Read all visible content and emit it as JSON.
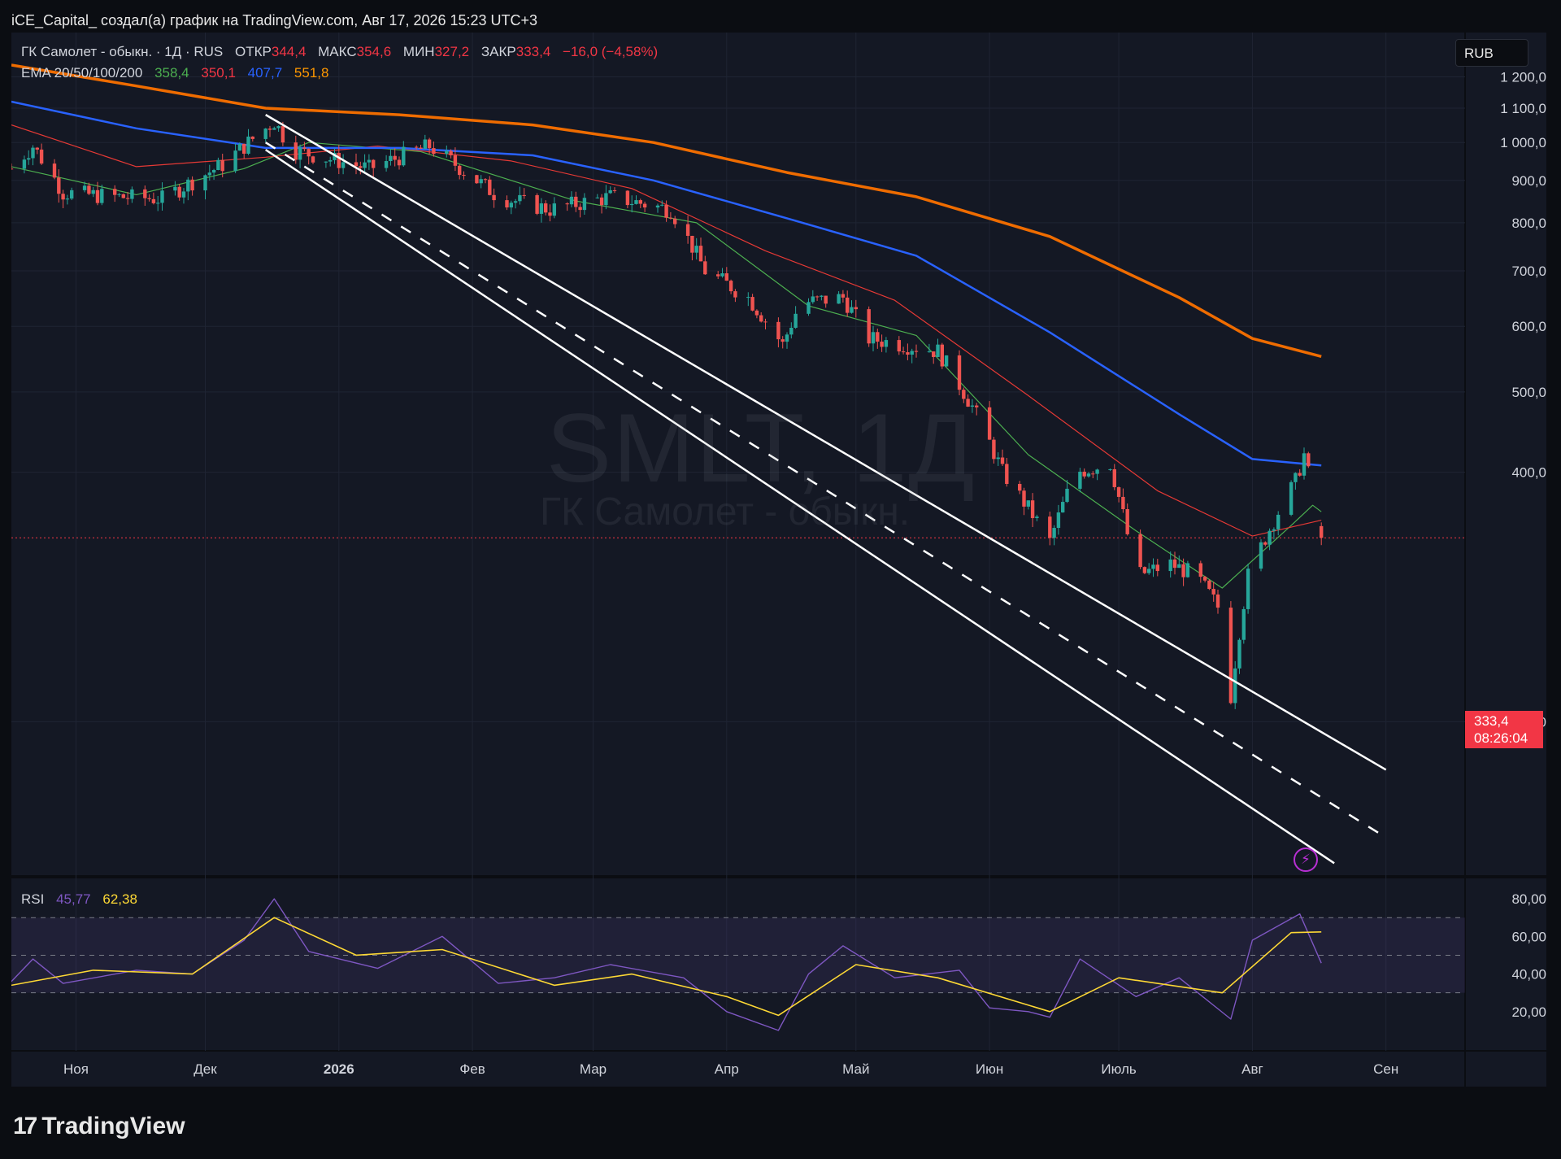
{
  "header": {
    "title": "iCE_Capital_ создал(а) график на TradingView.com, Авг 17, 2026 15:23 UTC+3"
  },
  "legend": {
    "symbol": "ГК Самолет - обыкн. · 1Д · RUS",
    "open_label": "ОТКР",
    "open_value": "344,4",
    "high_label": "МАКС",
    "high_value": "354,6",
    "low_label": "МИН",
    "low_value": "327,2",
    "close_label": "ЗАКР",
    "close_value": "333,4",
    "change": "−16,0 (−4,58%)",
    "ema_label": "EMA 20/50/100/200",
    "ema20": "358,4",
    "ema50": "350,1",
    "ema100": "407,7",
    "ema200": "551,8"
  },
  "rsi_legend": {
    "label": "RSI",
    "rsi": "45,77",
    "ma": "62,38"
  },
  "currency_button": "RUB",
  "price_badge": {
    "price": "333,4",
    "countdown": "08:26:04"
  },
  "watermark": {
    "ticker": "SMLT, 1Д",
    "name": "ГК Самолет - обыкн."
  },
  "footer": {
    "logo_text": "TradingView",
    "logo_mark": "17"
  },
  "icons": {
    "alert": "lightning-alert-icon",
    "logo": "tradingview-logo-icon"
  },
  "colors": {
    "up": "#26a69a",
    "down": "#ef5350",
    "ema20": "#4caf50",
    "ema50": "#e53935",
    "ema100": "#2962ff",
    "ema200": "#ef6c00",
    "rsi": "#7e57c2",
    "rsi_ma": "#fdd835",
    "channel": "#ffffff"
  },
  "chart_data": [
    {
      "type": "candlestick",
      "title": "ГК Самолет - обыкн. · 1Д · RUS",
      "currency": "RUB",
      "x_ticks": [
        "Ноя",
        "Дек",
        "2026",
        "Фев",
        "Мар",
        "Апр",
        "Май",
        "Июн",
        "Июль",
        "Авг",
        "Сен"
      ],
      "y_ticks": [
        "200,0",
        "400,0",
        "500,0",
        "600,0",
        "700,0",
        "800,0",
        "900,0",
        "1 000,0",
        "1 100,0",
        "1 200,0"
      ],
      "ylim": [
        130,
        1240
      ],
      "y_scale": "log",
      "last_price": 333.4,
      "price_path": [
        {
          "date": "2025-10-17",
          "close": 930
        },
        {
          "date": "2025-10-22",
          "close": 990
        },
        {
          "date": "2025-10-29",
          "close": 870
        },
        {
          "date": "2025-11-10",
          "close": 860
        },
        {
          "date": "2025-11-21",
          "close": 855
        },
        {
          "date": "2025-12-05",
          "close": 940
        },
        {
          "date": "2025-12-17",
          "close": 1060
        },
        {
          "date": "2025-12-21",
          "close": 980
        },
        {
          "date": "2026-01-08",
          "close": 930
        },
        {
          "date": "2026-01-22",
          "close": 990
        },
        {
          "date": "2026-02-07",
          "close": 860
        },
        {
          "date": "2026-02-19",
          "close": 830
        },
        {
          "date": "2026-03-05",
          "close": 860
        },
        {
          "date": "2026-03-19",
          "close": 830
        },
        {
          "date": "2026-03-27",
          "close": 700
        },
        {
          "date": "2026-04-06",
          "close": 650
        },
        {
          "date": "2026-04-14",
          "close": 570
        },
        {
          "date": "2026-04-18",
          "close": 640
        },
        {
          "date": "2026-04-28",
          "close": 650
        },
        {
          "date": "2026-05-04",
          "close": 580
        },
        {
          "date": "2026-05-20",
          "close": 560
        },
        {
          "date": "2026-05-28",
          "close": 480
        },
        {
          "date": "2026-06-04",
          "close": 400
        },
        {
          "date": "2026-06-15",
          "close": 330
        },
        {
          "date": "2026-06-21",
          "close": 400
        },
        {
          "date": "2026-06-29",
          "close": 410
        },
        {
          "date": "2026-07-05",
          "close": 300
        },
        {
          "date": "2026-07-13",
          "close": 310
        },
        {
          "date": "2026-07-19",
          "close": 300
        },
        {
          "date": "2026-07-25",
          "close": 270
        },
        {
          "date": "2026-07-27",
          "close": 215
        },
        {
          "date": "2026-07-31",
          "close": 300
        },
        {
          "date": "2026-08-06",
          "close": 350
        },
        {
          "date": "2026-08-11",
          "close": 390
        },
        {
          "date": "2026-08-13",
          "close": 420
        },
        {
          "date": "2026-08-17",
          "close": 333.4
        }
      ],
      "series": [
        {
          "name": "EMA 20",
          "last": 358.4,
          "points": [
            {
              "date": "2025-10-17",
              "value": 935
            },
            {
              "date": "2025-11-15",
              "value": 865
            },
            {
              "date": "2025-12-10",
              "value": 930
            },
            {
              "date": "2025-12-25",
              "value": 1000
            },
            {
              "date": "2026-01-20",
              "value": 975
            },
            {
              "date": "2026-02-25",
              "value": 850
            },
            {
              "date": "2026-03-25",
              "value": 800
            },
            {
              "date": "2026-04-20",
              "value": 635
            },
            {
              "date": "2026-05-15",
              "value": 585
            },
            {
              "date": "2026-06-10",
              "value": 420
            },
            {
              "date": "2026-07-05",
              "value": 340
            },
            {
              "date": "2026-07-25",
              "value": 290
            },
            {
              "date": "2026-08-10",
              "value": 345
            },
            {
              "date": "2026-08-15",
              "value": 365
            },
            {
              "date": "2026-08-17",
              "value": 358.4
            }
          ]
        },
        {
          "name": "EMA 50",
          "last": 350.1,
          "points": [
            {
              "date": "2025-10-17",
              "value": 1050
            },
            {
              "date": "2025-11-15",
              "value": 935
            },
            {
              "date": "2025-12-15",
              "value": 960
            },
            {
              "date": "2026-01-10",
              "value": 990
            },
            {
              "date": "2026-02-10",
              "value": 950
            },
            {
              "date": "2026-03-10",
              "value": 880
            },
            {
              "date": "2026-04-10",
              "value": 740
            },
            {
              "date": "2026-05-10",
              "value": 645
            },
            {
              "date": "2026-06-10",
              "value": 495
            },
            {
              "date": "2026-07-10",
              "value": 380
            },
            {
              "date": "2026-08-01",
              "value": 335
            },
            {
              "date": "2026-08-17",
              "value": 350.1
            }
          ]
        },
        {
          "name": "EMA 100",
          "last": 407.7,
          "points": [
            {
              "date": "2025-10-17",
              "value": 1120
            },
            {
              "date": "2025-11-15",
              "value": 1040
            },
            {
              "date": "2025-12-15",
              "value": 985
            },
            {
              "date": "2026-01-15",
              "value": 985
            },
            {
              "date": "2026-02-15",
              "value": 965
            },
            {
              "date": "2026-03-15",
              "value": 900
            },
            {
              "date": "2026-04-15",
              "value": 810
            },
            {
              "date": "2026-05-15",
              "value": 730
            },
            {
              "date": "2026-06-15",
              "value": 590
            },
            {
              "date": "2026-07-15",
              "value": 470
            },
            {
              "date": "2026-08-01",
              "value": 415
            },
            {
              "date": "2026-08-17",
              "value": 407.7
            }
          ]
        },
        {
          "name": "EMA 200",
          "last": 551.8,
          "points": [
            {
              "date": "2025-10-17",
              "value": 1240
            },
            {
              "date": "2025-11-15",
              "value": 1170
            },
            {
              "date": "2025-12-15",
              "value": 1100
            },
            {
              "date": "2026-01-15",
              "value": 1080
            },
            {
              "date": "2026-02-15",
              "value": 1050
            },
            {
              "date": "2026-03-15",
              "value": 1000
            },
            {
              "date": "2026-04-15",
              "value": 920
            },
            {
              "date": "2026-05-15",
              "value": 860
            },
            {
              "date": "2026-06-15",
              "value": 770
            },
            {
              "date": "2026-07-15",
              "value": 650
            },
            {
              "date": "2026-08-01",
              "value": 580
            },
            {
              "date": "2026-08-17",
              "value": 551.8
            }
          ]
        }
      ],
      "channel": [
        {
          "name": "upper",
          "from": {
            "date": "2025-12-15",
            "value": 1080
          },
          "to": {
            "date": "2026-09-01",
            "value": 175
          }
        },
        {
          "name": "mid",
          "from": {
            "date": "2025-12-15",
            "value": 1000
          },
          "to": {
            "date": "2026-09-01",
            "value": 145
          },
          "dashed": true
        },
        {
          "name": "lower",
          "from": {
            "date": "2025-12-15",
            "value": 980
          },
          "to": {
            "date": "2026-08-20",
            "value": 135
          }
        }
      ]
    },
    {
      "type": "line",
      "title": "RSI",
      "y_ticks": [
        "20,00",
        "40,00",
        "60,00",
        "80,00"
      ],
      "ylim": [
        0,
        90
      ],
      "bands": [
        30,
        50,
        70
      ],
      "series": [
        {
          "name": "RSI",
          "last": 45.77,
          "points": [
            {
              "date": "2025-10-17",
              "value": 36
            },
            {
              "date": "2025-10-22",
              "value": 48
            },
            {
              "date": "2025-10-29",
              "value": 35
            },
            {
              "date": "2025-11-15",
              "value": 42
            },
            {
              "date": "2025-11-28",
              "value": 40
            },
            {
              "date": "2025-12-10",
              "value": 58
            },
            {
              "date": "2025-12-17",
              "value": 80
            },
            {
              "date": "2025-12-25",
              "value": 52
            },
            {
              "date": "2026-01-10",
              "value": 43
            },
            {
              "date": "2026-01-25",
              "value": 60
            },
            {
              "date": "2026-02-07",
              "value": 35
            },
            {
              "date": "2026-02-20",
              "value": 38
            },
            {
              "date": "2026-03-05",
              "value": 45
            },
            {
              "date": "2026-03-22",
              "value": 38
            },
            {
              "date": "2026-04-01",
              "value": 20
            },
            {
              "date": "2026-04-13",
              "value": 10
            },
            {
              "date": "2026-04-20",
              "value": 40
            },
            {
              "date": "2026-04-28",
              "value": 55
            },
            {
              "date": "2026-05-10",
              "value": 38
            },
            {
              "date": "2026-05-25",
              "value": 42
            },
            {
              "date": "2026-06-01",
              "value": 22
            },
            {
              "date": "2026-06-10",
              "value": 20
            },
            {
              "date": "2026-06-15",
              "value": 17
            },
            {
              "date": "2026-06-22",
              "value": 48
            },
            {
              "date": "2026-07-05",
              "value": 28
            },
            {
              "date": "2026-07-15",
              "value": 38
            },
            {
              "date": "2026-07-27",
              "value": 16
            },
            {
              "date": "2026-08-01",
              "value": 58
            },
            {
              "date": "2026-08-12",
              "value": 72
            },
            {
              "date": "2026-08-17",
              "value": 45.77
            }
          ]
        },
        {
          "name": "RSI-based MA",
          "last": 62.38,
          "points": [
            {
              "date": "2025-10-17",
              "value": 34
            },
            {
              "date": "2025-11-05",
              "value": 42
            },
            {
              "date": "2025-11-28",
              "value": 40
            },
            {
              "date": "2025-12-17",
              "value": 70
            },
            {
              "date": "2026-01-05",
              "value": 50
            },
            {
              "date": "2026-01-25",
              "value": 53
            },
            {
              "date": "2026-02-20",
              "value": 34
            },
            {
              "date": "2026-03-10",
              "value": 40
            },
            {
              "date": "2026-04-01",
              "value": 28
            },
            {
              "date": "2026-04-13",
              "value": 18
            },
            {
              "date": "2026-05-01",
              "value": 45
            },
            {
              "date": "2026-05-20",
              "value": 38
            },
            {
              "date": "2026-06-15",
              "value": 20
            },
            {
              "date": "2026-07-01",
              "value": 38
            },
            {
              "date": "2026-07-25",
              "value": 30
            },
            {
              "date": "2026-08-10",
              "value": 62
            },
            {
              "date": "2026-08-17",
              "value": 62.38
            }
          ]
        }
      ]
    }
  ]
}
